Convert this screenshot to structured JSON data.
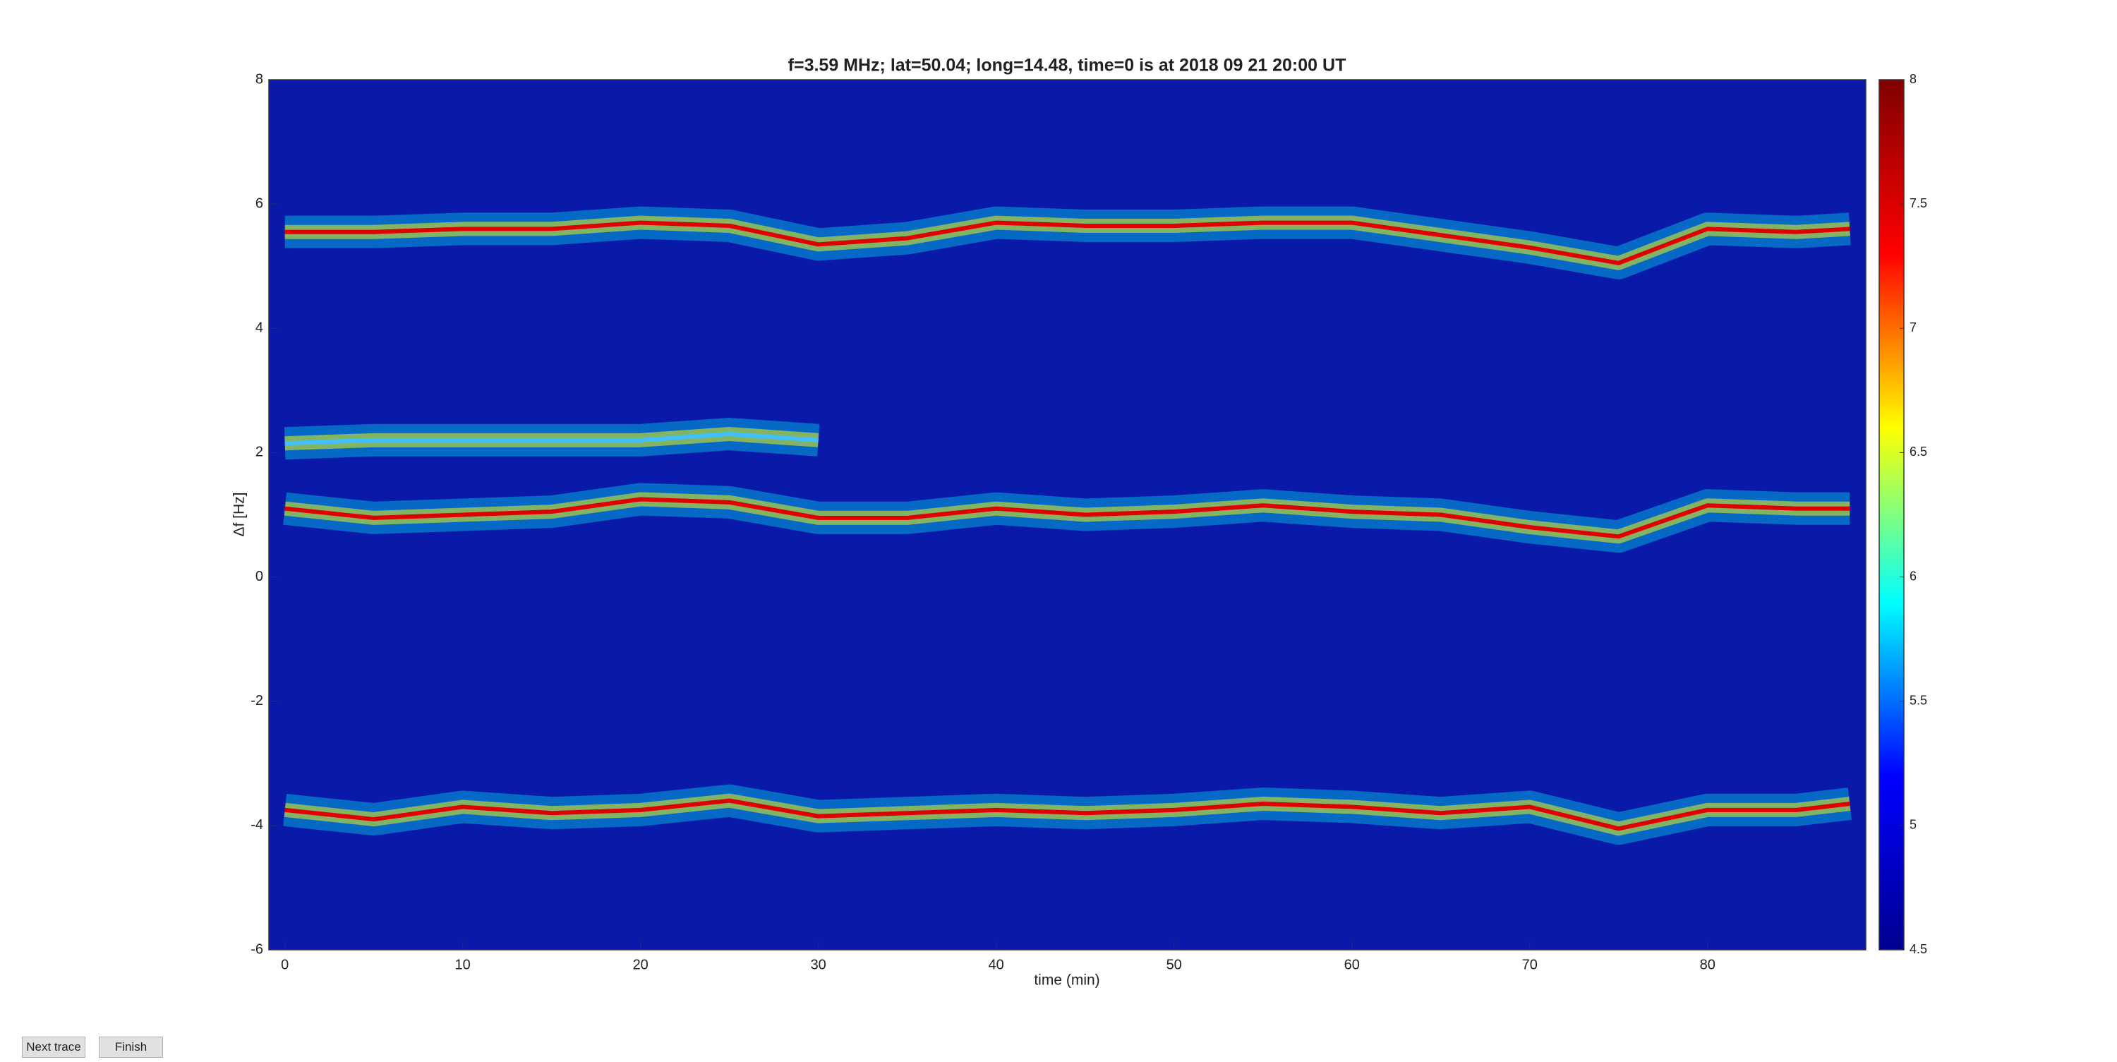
{
  "chart_data": {
    "type": "spectrogram",
    "title": "f=3.59 MHz;  lat=50.04; long=14.48, time=0 is at 2018 09 21 20:00 UT",
    "xlabel": "time (min)",
    "ylabel": "Δf [Hz]",
    "x": [
      0,
      5,
      10,
      15,
      20,
      25,
      30,
      35,
      40,
      45,
      50,
      55,
      60,
      65,
      70,
      75,
      80,
      85,
      88
    ],
    "series": [
      {
        "color": "#e00000",
        "values": [
          5.55,
          5.55,
          5.6,
          5.6,
          5.7,
          5.65,
          5.35,
          5.45,
          5.7,
          5.65,
          5.65,
          5.7,
          5.7,
          5.5,
          5.3,
          5.05,
          5.6,
          5.55,
          5.6
        ]
      },
      {
        "color": "#40c0ff",
        "values": [
          2.15,
          2.2,
          2.2,
          2.2,
          2.2,
          2.3,
          2.2,
          null,
          null,
          null,
          null,
          null,
          null,
          null,
          null,
          null,
          null,
          null,
          null
        ]
      },
      {
        "color": "#e00000",
        "values": [
          1.1,
          0.95,
          1.0,
          1.05,
          1.25,
          1.2,
          0.95,
          0.95,
          1.1,
          1.0,
          1.05,
          1.15,
          1.05,
          1.0,
          0.8,
          0.65,
          1.15,
          1.1,
          1.1
        ]
      },
      {
        "color": "#e00000",
        "values": [
          -3.75,
          -3.9,
          -3.7,
          -3.8,
          -3.75,
          -3.6,
          -3.85,
          -3.8,
          -3.75,
          -3.8,
          -3.75,
          -3.65,
          -3.7,
          -3.8,
          -3.7,
          -4.05,
          -3.75,
          -3.75,
          -3.65
        ]
      }
    ],
    "xlim": [
      -0.9,
      88.9
    ],
    "xticks": [
      0,
      10,
      20,
      30,
      40,
      50,
      60,
      70,
      80
    ],
    "ylim": [
      -6,
      8
    ],
    "yticks": [
      -6,
      -4,
      -2,
      0,
      2,
      4,
      6,
      8
    ],
    "background": "#0a1aa8",
    "colormap": [
      "#00008f",
      "#0000ff",
      "#00ffff",
      "#ffff00",
      "#ff0000",
      "#800000"
    ],
    "clim": [
      4.5,
      8
    ],
    "cticks": [
      4.5,
      5,
      5.5,
      6,
      6.5,
      7,
      7.5,
      8
    ]
  },
  "buttons": [
    "Next trace",
    "Finish"
  ]
}
